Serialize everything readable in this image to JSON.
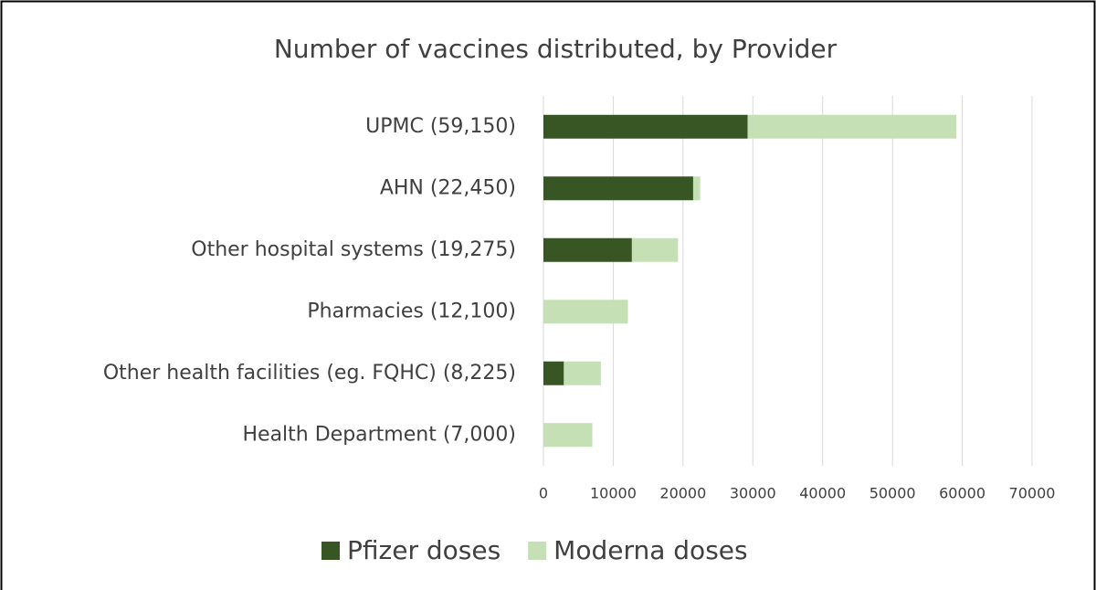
{
  "chart_data": {
    "type": "bar",
    "stacked": true,
    "orientation": "horizontal",
    "title": "Number of vaccines distributed, by Provider",
    "categories": [
      "UPMC (59,150)",
      "AHN (22,450)",
      "Other hospital systems (19,275)",
      "Pharmacies (12,100)",
      "Other health facilities (eg. FQHC) (8,225)",
      "Health Department (7,000)"
    ],
    "series": [
      {
        "name": "Pfizer doses",
        "color": "#375623",
        "values": [
          29250,
          21450,
          12675,
          0,
          2925,
          0
        ]
      },
      {
        "name": "Moderna doses",
        "color": "#c5e0b4",
        "values": [
          29900,
          1000,
          6600,
          12100,
          5300,
          7000
        ]
      }
    ],
    "xlim": [
      0,
      70000
    ],
    "xticks": [
      0,
      10000,
      20000,
      30000,
      40000,
      50000,
      60000,
      70000
    ],
    "grid": true,
    "legend": "bottom"
  }
}
